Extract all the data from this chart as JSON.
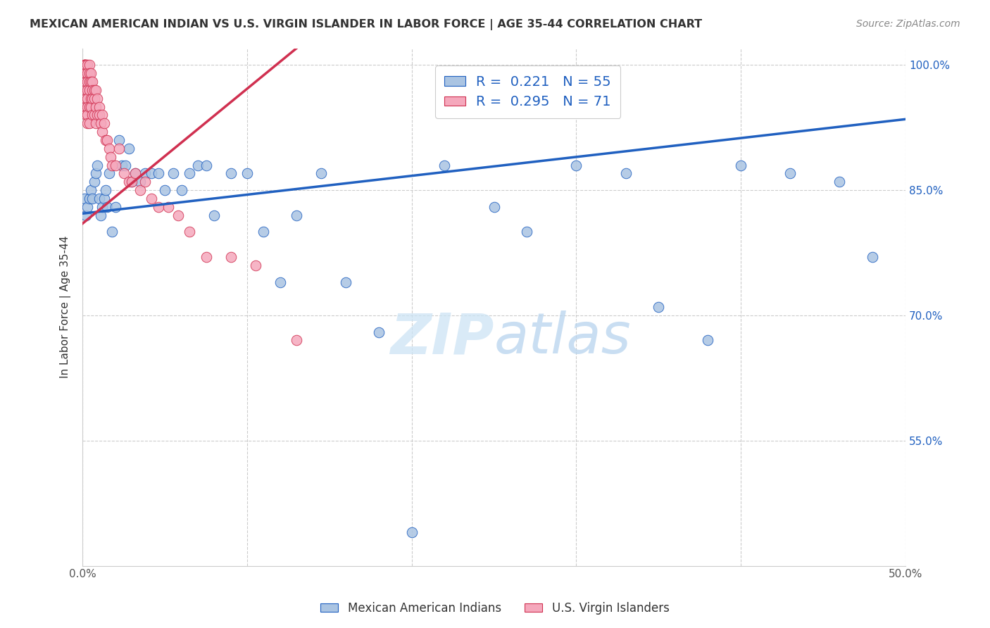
{
  "title": "MEXICAN AMERICAN INDIAN VS U.S. VIRGIN ISLANDER IN LABOR FORCE | AGE 35-44 CORRELATION CHART",
  "source": "Source: ZipAtlas.com",
  "ylabel": "In Labor Force | Age 35-44",
  "xlim": [
    0.0,
    0.5
  ],
  "ylim": [
    0.4,
    1.02
  ],
  "xticks": [
    0.0,
    0.1,
    0.2,
    0.3,
    0.4,
    0.5
  ],
  "xticklabels": [
    "0.0%",
    "",
    "",
    "",
    "",
    "50.0%"
  ],
  "yticks": [
    0.55,
    0.7,
    0.85,
    1.0
  ],
  "yticklabels": [
    "55.0%",
    "70.0%",
    "85.0%",
    "100.0%"
  ],
  "blue_R": 0.221,
  "blue_N": 55,
  "pink_R": 0.295,
  "pink_N": 71,
  "blue_color": "#aac4e2",
  "pink_color": "#f5a8bc",
  "blue_line_color": "#2060c0",
  "pink_line_color": "#d03050",
  "grid_color": "#cccccc",
  "watermark_zip": "ZIP",
  "watermark_atlas": "atlas",
  "legend_R_color": "#2060c0",
  "legend_label_blue": "Mexican American Indians",
  "legend_label_pink": "U.S. Virgin Islanders",
  "blue_trend_x0": 0.0,
  "blue_trend_y0": 0.822,
  "blue_trend_x1": 0.5,
  "blue_trend_y1": 0.935,
  "pink_trend_x0": 0.0,
  "pink_trend_y0": 0.81,
  "pink_trend_x1": 0.13,
  "pink_trend_y1": 1.02,
  "blue_scatter_x": [
    0.001,
    0.002,
    0.003,
    0.004,
    0.005,
    0.006,
    0.007,
    0.008,
    0.009,
    0.01,
    0.011,
    0.012,
    0.013,
    0.014,
    0.015,
    0.016,
    0.018,
    0.02,
    0.022,
    0.024,
    0.026,
    0.028,
    0.03,
    0.032,
    0.035,
    0.038,
    0.042,
    0.046,
    0.05,
    0.055,
    0.06,
    0.065,
    0.07,
    0.075,
    0.08,
    0.09,
    0.1,
    0.11,
    0.12,
    0.13,
    0.145,
    0.16,
    0.18,
    0.2,
    0.22,
    0.25,
    0.27,
    0.3,
    0.33,
    0.35,
    0.38,
    0.4,
    0.43,
    0.46,
    0.48
  ],
  "blue_scatter_y": [
    0.84,
    0.82,
    0.83,
    0.84,
    0.85,
    0.84,
    0.86,
    0.87,
    0.88,
    0.84,
    0.82,
    0.83,
    0.84,
    0.85,
    0.83,
    0.87,
    0.8,
    0.83,
    0.91,
    0.88,
    0.88,
    0.9,
    0.86,
    0.87,
    0.86,
    0.87,
    0.87,
    0.87,
    0.85,
    0.87,
    0.85,
    0.87,
    0.88,
    0.88,
    0.82,
    0.87,
    0.87,
    0.8,
    0.74,
    0.82,
    0.87,
    0.74,
    0.68,
    0.44,
    0.88,
    0.83,
    0.8,
    0.88,
    0.87,
    0.71,
    0.67,
    0.88,
    0.87,
    0.86,
    0.77
  ],
  "pink_scatter_x": [
    0.001,
    0.001,
    0.001,
    0.001,
    0.001,
    0.002,
    0.002,
    0.002,
    0.002,
    0.002,
    0.002,
    0.002,
    0.002,
    0.003,
    0.003,
    0.003,
    0.003,
    0.003,
    0.003,
    0.003,
    0.003,
    0.004,
    0.004,
    0.004,
    0.004,
    0.004,
    0.004,
    0.005,
    0.005,
    0.005,
    0.005,
    0.006,
    0.006,
    0.006,
    0.006,
    0.007,
    0.007,
    0.007,
    0.008,
    0.008,
    0.008,
    0.009,
    0.009,
    0.01,
    0.01,
    0.011,
    0.012,
    0.012,
    0.013,
    0.014,
    0.015,
    0.016,
    0.017,
    0.018,
    0.02,
    0.022,
    0.025,
    0.028,
    0.03,
    0.032,
    0.035,
    0.038,
    0.042,
    0.046,
    0.052,
    0.058,
    0.065,
    0.075,
    0.09,
    0.105,
    0.13
  ],
  "pink_scatter_y": [
    1.0,
    1.0,
    1.0,
    1.0,
    0.99,
    1.0,
    1.0,
    0.99,
    0.98,
    0.97,
    0.96,
    0.95,
    0.94,
    1.0,
    0.99,
    0.98,
    0.97,
    0.96,
    0.95,
    0.94,
    0.93,
    1.0,
    0.99,
    0.98,
    0.97,
    0.95,
    0.93,
    0.99,
    0.98,
    0.96,
    0.95,
    0.98,
    0.97,
    0.96,
    0.94,
    0.97,
    0.96,
    0.94,
    0.97,
    0.95,
    0.93,
    0.96,
    0.94,
    0.95,
    0.94,
    0.93,
    0.94,
    0.92,
    0.93,
    0.91,
    0.91,
    0.9,
    0.89,
    0.88,
    0.88,
    0.9,
    0.87,
    0.86,
    0.86,
    0.87,
    0.85,
    0.86,
    0.84,
    0.83,
    0.83,
    0.82,
    0.8,
    0.77,
    0.77,
    0.76,
    0.67
  ]
}
